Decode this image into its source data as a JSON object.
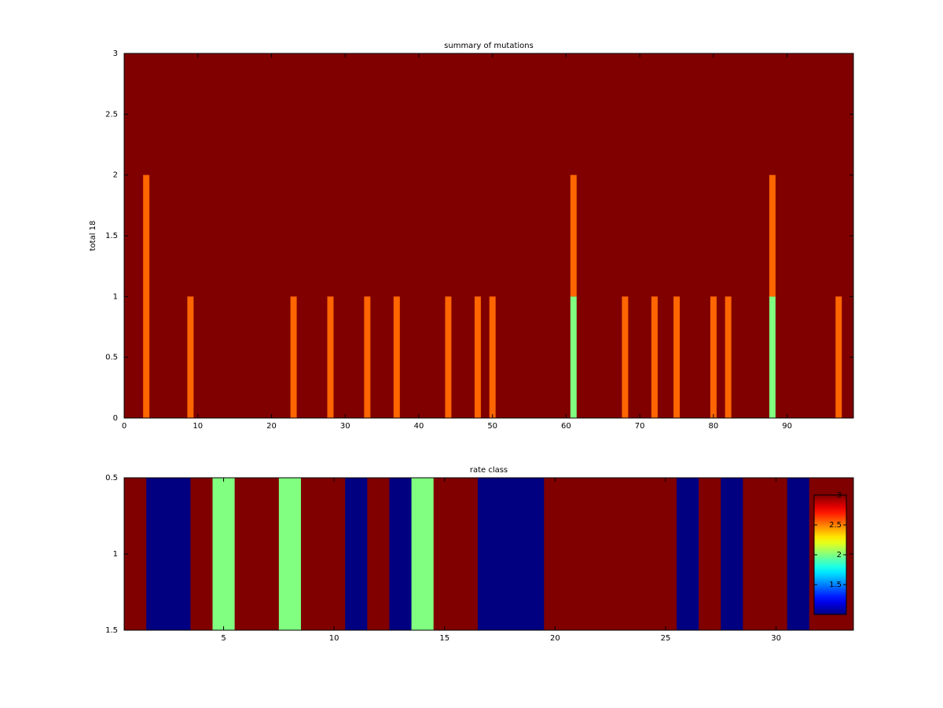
{
  "chart_data": [
    {
      "type": "stacked_bar",
      "title": "summary of mutations",
      "ylabel": "total 18",
      "x": [
        3,
        9,
        23,
        28,
        33,
        37,
        44,
        48,
        50,
        61,
        68,
        72,
        75,
        80,
        82,
        88,
        97
      ],
      "series": [
        {
          "color": "#80ff80",
          "values": [
            0,
            0,
            0,
            0,
            0,
            0,
            0,
            0,
            0,
            1,
            0,
            0,
            0,
            0,
            0,
            1,
            0
          ]
        },
        {
          "color": "#ff6600",
          "values": [
            2,
            1,
            1,
            1,
            1,
            1,
            1,
            1,
            1,
            1,
            1,
            1,
            1,
            1,
            1,
            1,
            1
          ]
        }
      ],
      "plot_color": "#800000",
      "xlim": [
        0,
        99
      ],
      "xticks": [
        0,
        10,
        20,
        30,
        40,
        50,
        60,
        70,
        80,
        90
      ],
      "ylim": [
        0,
        3
      ],
      "yticks": [
        0,
        0.5,
        1,
        1.5,
        2,
        2.5,
        3
      ]
    },
    {
      "type": "heatmap",
      "title": "rate class",
      "x": [
        1,
        2,
        3,
        4,
        5,
        6,
        7,
        8,
        9,
        10,
        11,
        12,
        13,
        14,
        15,
        16,
        17,
        18,
        19,
        20,
        21,
        22,
        23,
        24,
        25,
        26,
        27,
        28,
        29,
        30,
        31,
        32,
        33
      ],
      "values": [
        [
          3,
          1,
          1,
          3,
          2,
          3,
          3,
          2,
          3,
          3,
          1,
          3,
          1,
          2,
          3,
          3,
          1,
          1,
          1,
          3,
          3,
          3,
          3,
          3,
          3,
          1,
          3,
          1,
          3,
          3,
          1,
          3,
          3
        ]
      ],
      "colormap": "jet",
      "clim": [
        1,
        3
      ],
      "cticks": [
        1.5,
        2,
        2.5,
        3
      ],
      "xlim": [
        0.5,
        33.5
      ],
      "xticks": [
        5,
        10,
        15,
        20,
        25,
        30
      ],
      "ylim": [
        1.5,
        0.5
      ],
      "yticks": [
        0.5,
        1,
        1.5
      ]
    }
  ]
}
